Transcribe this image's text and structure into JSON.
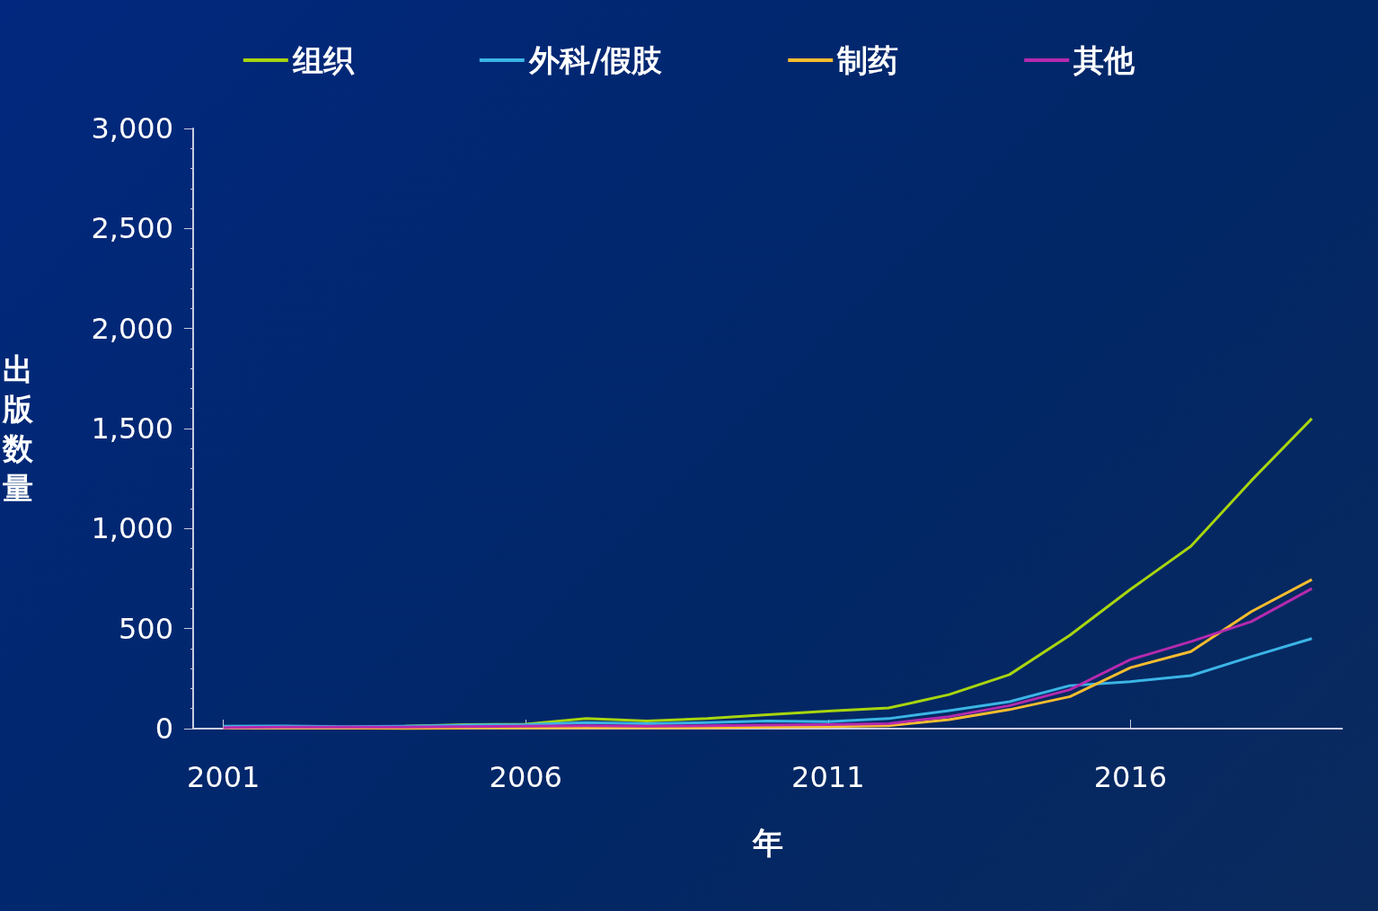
{
  "chart_data": {
    "type": "line",
    "xlabel": "年",
    "ylabel": "出版数量",
    "x": [
      2001,
      2002,
      2003,
      2004,
      2005,
      2006,
      2007,
      2008,
      2009,
      2010,
      2011,
      2012,
      2013,
      2014,
      2015,
      2016,
      2017,
      2018,
      2019
    ],
    "series": [
      {
        "name": "组织",
        "color": "#a8d50e",
        "values": [
          null,
          null,
          null,
          12,
          20,
          22,
          50,
          38,
          50,
          70,
          88,
          103,
          170,
          270,
          467,
          696,
          912,
          1240,
          1550
        ]
      },
      {
        "name": "外科/假肢",
        "color": "#3bb5e6",
        "values": [
          12,
          14,
          10,
          12,
          18,
          20,
          30,
          25,
          30,
          38,
          35,
          50,
          90,
          135,
          215,
          235,
          265,
          360,
          450
        ]
      },
      {
        "name": "制药",
        "color": "#f8bd2e",
        "values": [
          3,
          3,
          3,
          0,
          3,
          3,
          5,
          5,
          5,
          8,
          10,
          15,
          45,
          95,
          160,
          305,
          385,
          585,
          745
        ]
      },
      {
        "name": "其他",
        "color": "#b52aae",
        "values": [
          5,
          8,
          8,
          8,
          10,
          12,
          15,
          12,
          15,
          18,
          20,
          25,
          60,
          115,
          195,
          345,
          435,
          535,
          700
        ]
      }
    ],
    "xlim": [
      2000.5,
      2019.5
    ],
    "xticks": [
      2001,
      2006,
      2011,
      2016
    ],
    "ylim": [
      0,
      3000
    ],
    "yticks": [
      0,
      500,
      {
        "value": 1000,
        "label": "1,000"
      },
      {
        "value": 1500,
        "label": "1,500"
      },
      {
        "value": 2000,
        "label": "2,000"
      },
      {
        "value": 2500,
        "label": "2,500"
      },
      {
        "value": 3000,
        "label": "3,000"
      }
    ],
    "legend": "top",
    "marker": "none",
    "line_style": "solid",
    "grid": false
  }
}
